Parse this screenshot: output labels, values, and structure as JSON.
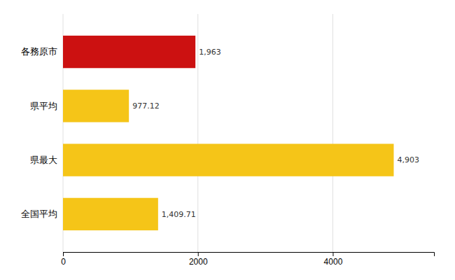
{
  "chart_data": {
    "type": "bar",
    "orientation": "horizontal",
    "categories": [
      "各務原市",
      "県平均",
      "県最大",
      "全国平均"
    ],
    "values": [
      1963,
      977.12,
      4903,
      1409.71
    ],
    "value_labels": [
      "1,963",
      "977.12",
      "4,903",
      "1,409.71"
    ],
    "colors": [
      "#cc1111",
      "#f5c518",
      "#f5c518",
      "#f5c518"
    ],
    "xlim": [
      0,
      5500
    ],
    "xticks": [
      0,
      2000,
      4000
    ],
    "grid": true,
    "data_labels": true
  }
}
